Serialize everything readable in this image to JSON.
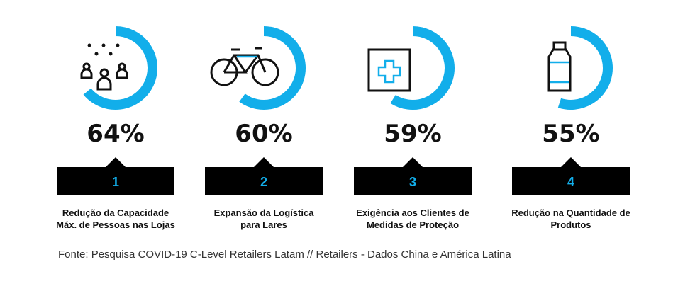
{
  "chart_data": {
    "type": "radial",
    "categories": [
      [
        "Redução da Capacidade",
        "Máx. de Pessoas nas Lojas"
      ],
      [
        "Expansão da Logística",
        "para Lares"
      ],
      [
        "Exigência aos Clientes de",
        "Medidas de Proteção"
      ],
      [
        "Redução na Quantidade de",
        "Produtos"
      ]
    ],
    "values": [
      64,
      60,
      59,
      55
    ],
    "value_labels": [
      "64%",
      "60%",
      "59%",
      "55%"
    ],
    "ranks": [
      1,
      2,
      3,
      4
    ],
    "color": "#12aeea",
    "source": "Fonte: Pesquisa COVID-19 C-Level Retailers Latam // Retailers - Dados China e América Latina"
  }
}
